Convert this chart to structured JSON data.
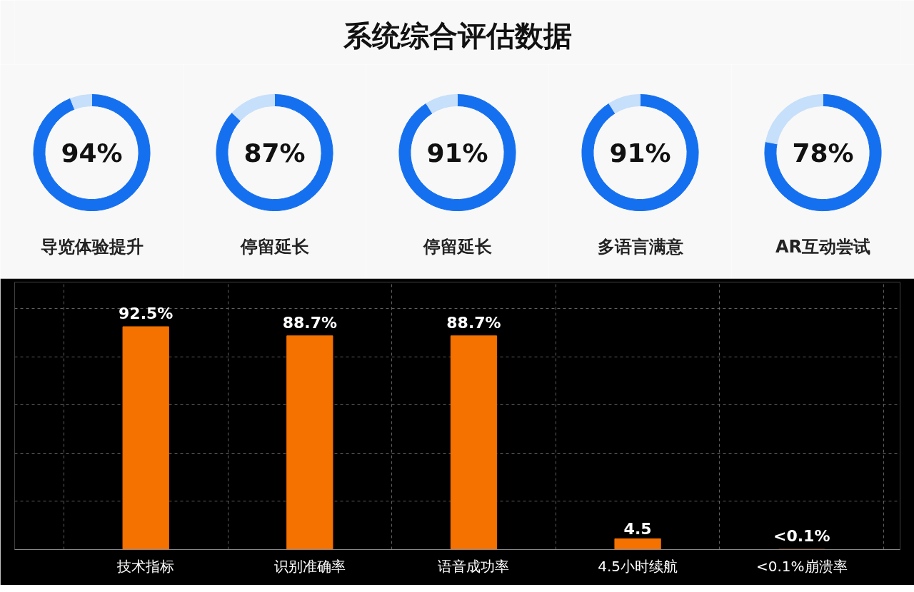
{
  "chart_data": [
    {
      "type": "other",
      "title": "系统综合评估数据"
    },
    {
      "type": "donut",
      "xlabel": "导览体验提升",
      "categories": [
        null,
        null
      ],
      "values": [
        94,
        6
      ],
      "colors": [
        "#1570f0",
        "#c6dffa"
      ],
      "annotations": [
        "94%"
      ]
    },
    {
      "type": "donut",
      "xlabel": "停留延长",
      "categories": [
        null,
        null
      ],
      "values": [
        87,
        13
      ],
      "colors": [
        "#1570f0",
        "#c6dffa"
      ],
      "annotations": [
        "87%"
      ]
    },
    {
      "type": "donut",
      "xlabel": "停留延长",
      "categories": [
        null,
        null
      ],
      "values": [
        91,
        9
      ],
      "colors": [
        "#1570f0",
        "#c6dffa"
      ],
      "annotations": [
        "91%"
      ]
    },
    {
      "type": "donut",
      "xlabel": "多语言满意",
      "categories": [
        null,
        null
      ],
      "values": [
        91,
        9
      ],
      "colors": [
        "#1570f0",
        "#c6dffa"
      ],
      "annotations": [
        "91%"
      ]
    },
    {
      "type": "donut",
      "xlabel": "AR互动尝试",
      "categories": [
        null,
        null
      ],
      "values": [
        78,
        22
      ],
      "colors": [
        "#1570f0",
        "#c6dffa"
      ],
      "annotations": [
        "78%"
      ]
    },
    {
      "type": "bar",
      "categories": [
        "技术指标",
        "识别准确率",
        "语音成功率",
        "4.5小时续航",
        "<0.1%崩溃率"
      ],
      "values": [
        92.5,
        88.7,
        88.7,
        4.5,
        0.1
      ],
      "tick_labels": "x",
      "value_labels": [
        "92.5%",
        "88.7%",
        "88.7%",
        "4.5",
        "<0.1%"
      ],
      "color": "#f57100",
      "grid": true
    }
  ]
}
